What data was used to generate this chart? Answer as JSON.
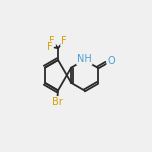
{
  "background_color": "#f0f0f0",
  "bond_color": "#2a2a2a",
  "atom_colors": {
    "F": "#d4a000",
    "Br": "#d4a000",
    "O": "#4a9fd4",
    "N": "#4a9fd4",
    "C": "#2a2a2a"
  },
  "bond_width": 1.3,
  "font_size": 7.0,
  "s": 1.0,
  "rcx": 5.55,
  "rcy": 5.05,
  "lcx": 3.82,
  "lcy": 5.05
}
